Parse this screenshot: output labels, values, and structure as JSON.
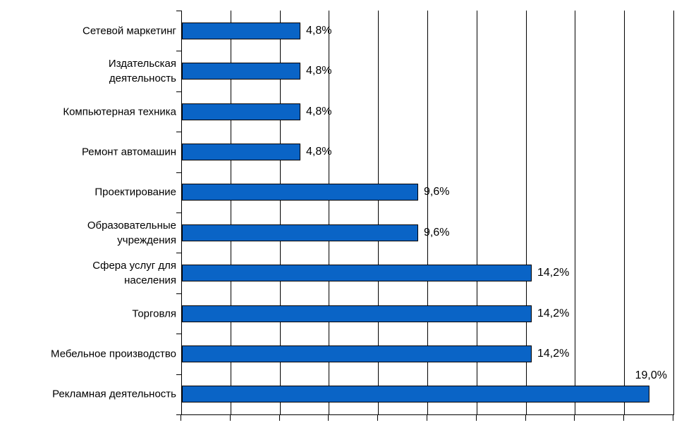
{
  "chart_data": {
    "type": "bar",
    "orientation": "horizontal",
    "title": "",
    "xlabel": "",
    "ylabel": "",
    "categories": [
      "Сетевой маркетинг",
      "Издательская\nдеятельность",
      "Компьютерная техника",
      "Ремонт автомашин",
      "Проектирование",
      "Образовательные\nучреждения",
      "Сфера услуг для\nнаселения",
      "Торговля",
      "Мебельное производство",
      "Рекламная деятельность"
    ],
    "values": [
      4.8,
      4.8,
      4.8,
      4.8,
      9.6,
      9.6,
      14.2,
      14.2,
      14.2,
      19.0
    ],
    "value_labels": [
      "4,8%",
      "4,8%",
      "4,8%",
      "4,8%",
      "9,6%",
      "9,6%",
      "14,2%",
      "14,2%",
      "14,2%",
      "19,0%"
    ],
    "xlim": [
      0,
      20
    ],
    "gridline_step_percent": 2,
    "grid": true,
    "legend_position": "none",
    "bar_color": "#0a64c6",
    "bar_border_color": "#000000",
    "axis_color": "#000000",
    "background_color": "#ffffff",
    "last_label_position": "above-bar-end"
  }
}
